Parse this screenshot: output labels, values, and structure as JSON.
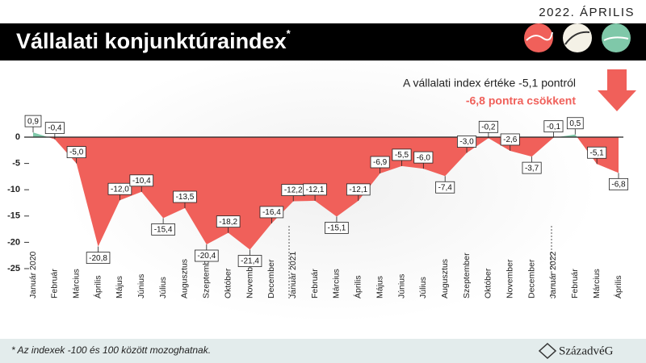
{
  "chart_data": {
    "type": "area",
    "date": "2022. ÁPRILIS",
    "title": "Vállalati konjunktúraindex",
    "title_mark": "*",
    "annotation": [
      "A vállalati index értéke -5,1 pontról",
      "-6,8 pontra csökkent"
    ],
    "footnote": "* Az indexek -100 és 100 között mozoghatnak.",
    "logo": "SzázadvéG",
    "categories": [
      "Január 2020",
      "Február",
      "Március",
      "Április",
      "Május",
      "Június",
      "Július",
      "Augusztus",
      "Szeptember",
      "Október",
      "November",
      "December",
      "Január 2021",
      "Február",
      "Március",
      "Április",
      "Május",
      "Június",
      "Július",
      "Augusztus",
      "Szeptember",
      "Október",
      "November",
      "December",
      "Január 2022",
      "Február",
      "Március",
      "Április"
    ],
    "values": [
      0.9,
      -0.4,
      -5.0,
      -20.8,
      -12.0,
      -10.4,
      -15.4,
      -13.5,
      -20.4,
      -18.2,
      -21.4,
      -16.4,
      -12.2,
      -12.1,
      -15.1,
      -12.1,
      -6.9,
      -5.5,
      -6.0,
      -7.4,
      -3.0,
      -0.2,
      -2.6,
      -3.7,
      -0.1,
      0.5,
      -5.1,
      -6.8
    ],
    "value_labels": [
      "0,9",
      "-0,4",
      "-5,0",
      "-20,8",
      "-12,0",
      "-10,4",
      "-15,4",
      "-13,5",
      "-20,4",
      "-18,2",
      "-21,4",
      "-16,4",
      "-12,2",
      "-12,1",
      "-15,1",
      "-12,1",
      "-6,9",
      "-5,5",
      "-6,0",
      "-7,4",
      "-3,0",
      "-0,2",
      "-2,6",
      "-3,7",
      "-0,1",
      "0,5",
      "-5,1",
      "-6,8"
    ],
    "negative_color": "#f0605a",
    "positive_color": "#7fc8a9",
    "ylim": [
      -25,
      4.5
    ],
    "yticks": [
      0,
      -5,
      -10,
      -15,
      -20,
      -25
    ]
  }
}
